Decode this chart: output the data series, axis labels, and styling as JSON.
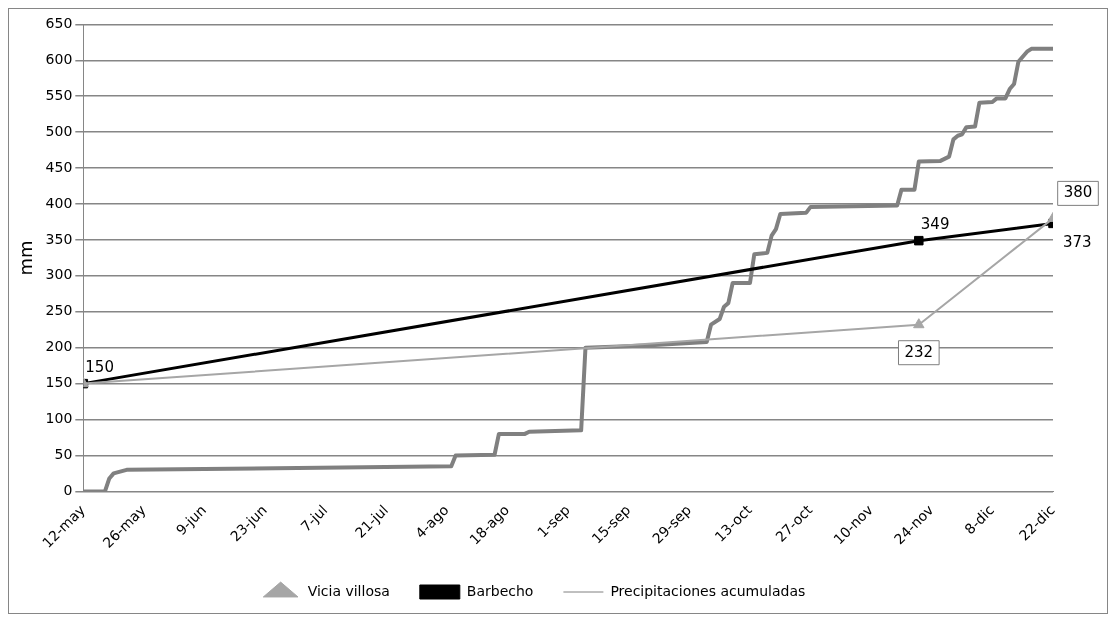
{
  "chart_data": {
    "type": "line",
    "ylabel": "mm",
    "xlim": [
      "--05-12",
      "--12-22"
    ],
    "xticks": [
      {
        "value": "--05-12",
        "label": "12-may"
      },
      {
        "value": "--05-26",
        "label": "26-may"
      },
      {
        "value": "--06-09",
        "label": "9-jun"
      },
      {
        "value": "--06-23",
        "label": "23-jun"
      },
      {
        "value": "--07-07",
        "label": "7-jul"
      },
      {
        "value": "--07-21",
        "label": "21-jul"
      },
      {
        "value": "--08-04",
        "label": "4-ago"
      },
      {
        "value": "--08-18",
        "label": "18-ago"
      },
      {
        "value": "--09-01",
        "label": "1-sep"
      },
      {
        "value": "--09-15",
        "label": "15-sep"
      },
      {
        "value": "--09-29",
        "label": "29-sep"
      },
      {
        "value": "--10-13",
        "label": "13-oct"
      },
      {
        "value": "--10-27",
        "label": "27-oct"
      },
      {
        "value": "--11-10",
        "label": "10-nov"
      },
      {
        "value": "--11-24",
        "label": "24-nov"
      },
      {
        "value": "--12-08",
        "label": "8-dic"
      },
      {
        "value": "--12-22",
        "label": "22-dic"
      }
    ],
    "ylim": [
      0,
      650
    ],
    "yticks": [
      0,
      50,
      100,
      150,
      200,
      250,
      300,
      350,
      400,
      450,
      500,
      550,
      600,
      650
    ],
    "grid": "y",
    "legend": "bottom",
    "series": [
      {
        "name": "Precipitaciones acumuladas",
        "color": "#808080",
        "marker": "none",
        "x": [
          "--05-12",
          "--05-17",
          "--05-18",
          "--05-19",
          "--05-22",
          "--08-05",
          "--08-06",
          "--08-15",
          "--08-16",
          "--08-22",
          "--08-23",
          "--09-04",
          "--09-05",
          "--09-19",
          "--10-03",
          "--10-04",
          "--10-06",
          "--10-07",
          "--10-08",
          "--10-09",
          "--10-13",
          "--10-14",
          "--10-17",
          "--10-18",
          "--10-19",
          "--10-20",
          "--10-26",
          "--10-27",
          "--11-16",
          "--11-17",
          "--11-20",
          "--11-21",
          "--11-26",
          "--11-28",
          "--11-29",
          "--11-30",
          "--12-01",
          "--12-02",
          "--12-04",
          "--12-05",
          "--12-08",
          "--12-09",
          "--12-11",
          "--12-12",
          "--12-13",
          "--12-14",
          "--12-16",
          "--12-17",
          "--12-22"
        ],
        "values": [
          0,
          0,
          18,
          25,
          30,
          35,
          50,
          51,
          80,
          80,
          83,
          85,
          200,
          203,
          208,
          232,
          240,
          257,
          262,
          290,
          290,
          330,
          332,
          356,
          365,
          386,
          388,
          396,
          398,
          420,
          420,
          459,
          460,
          466,
          490,
          495,
          497,
          507,
          508,
          541,
          542,
          547,
          547,
          560,
          567,
          598,
          612,
          616,
          616
        ]
      },
      {
        "name": "Barbecho",
        "color": "#000000",
        "marker": "square",
        "x": [
          "--05-12",
          "--11-21",
          "--12-22"
        ],
        "values": [
          150,
          349,
          373
        ],
        "value_labels": [
          "150",
          "349",
          "373"
        ]
      },
      {
        "name": "Vicia villosa",
        "color": "#a6a6a6",
        "marker": "triangle",
        "x": [
          "--05-12",
          "--11-21",
          "--12-22"
        ],
        "values": [
          150,
          232,
          380
        ],
        "value_labels": [
          null,
          "232",
          "380"
        ]
      }
    ]
  }
}
